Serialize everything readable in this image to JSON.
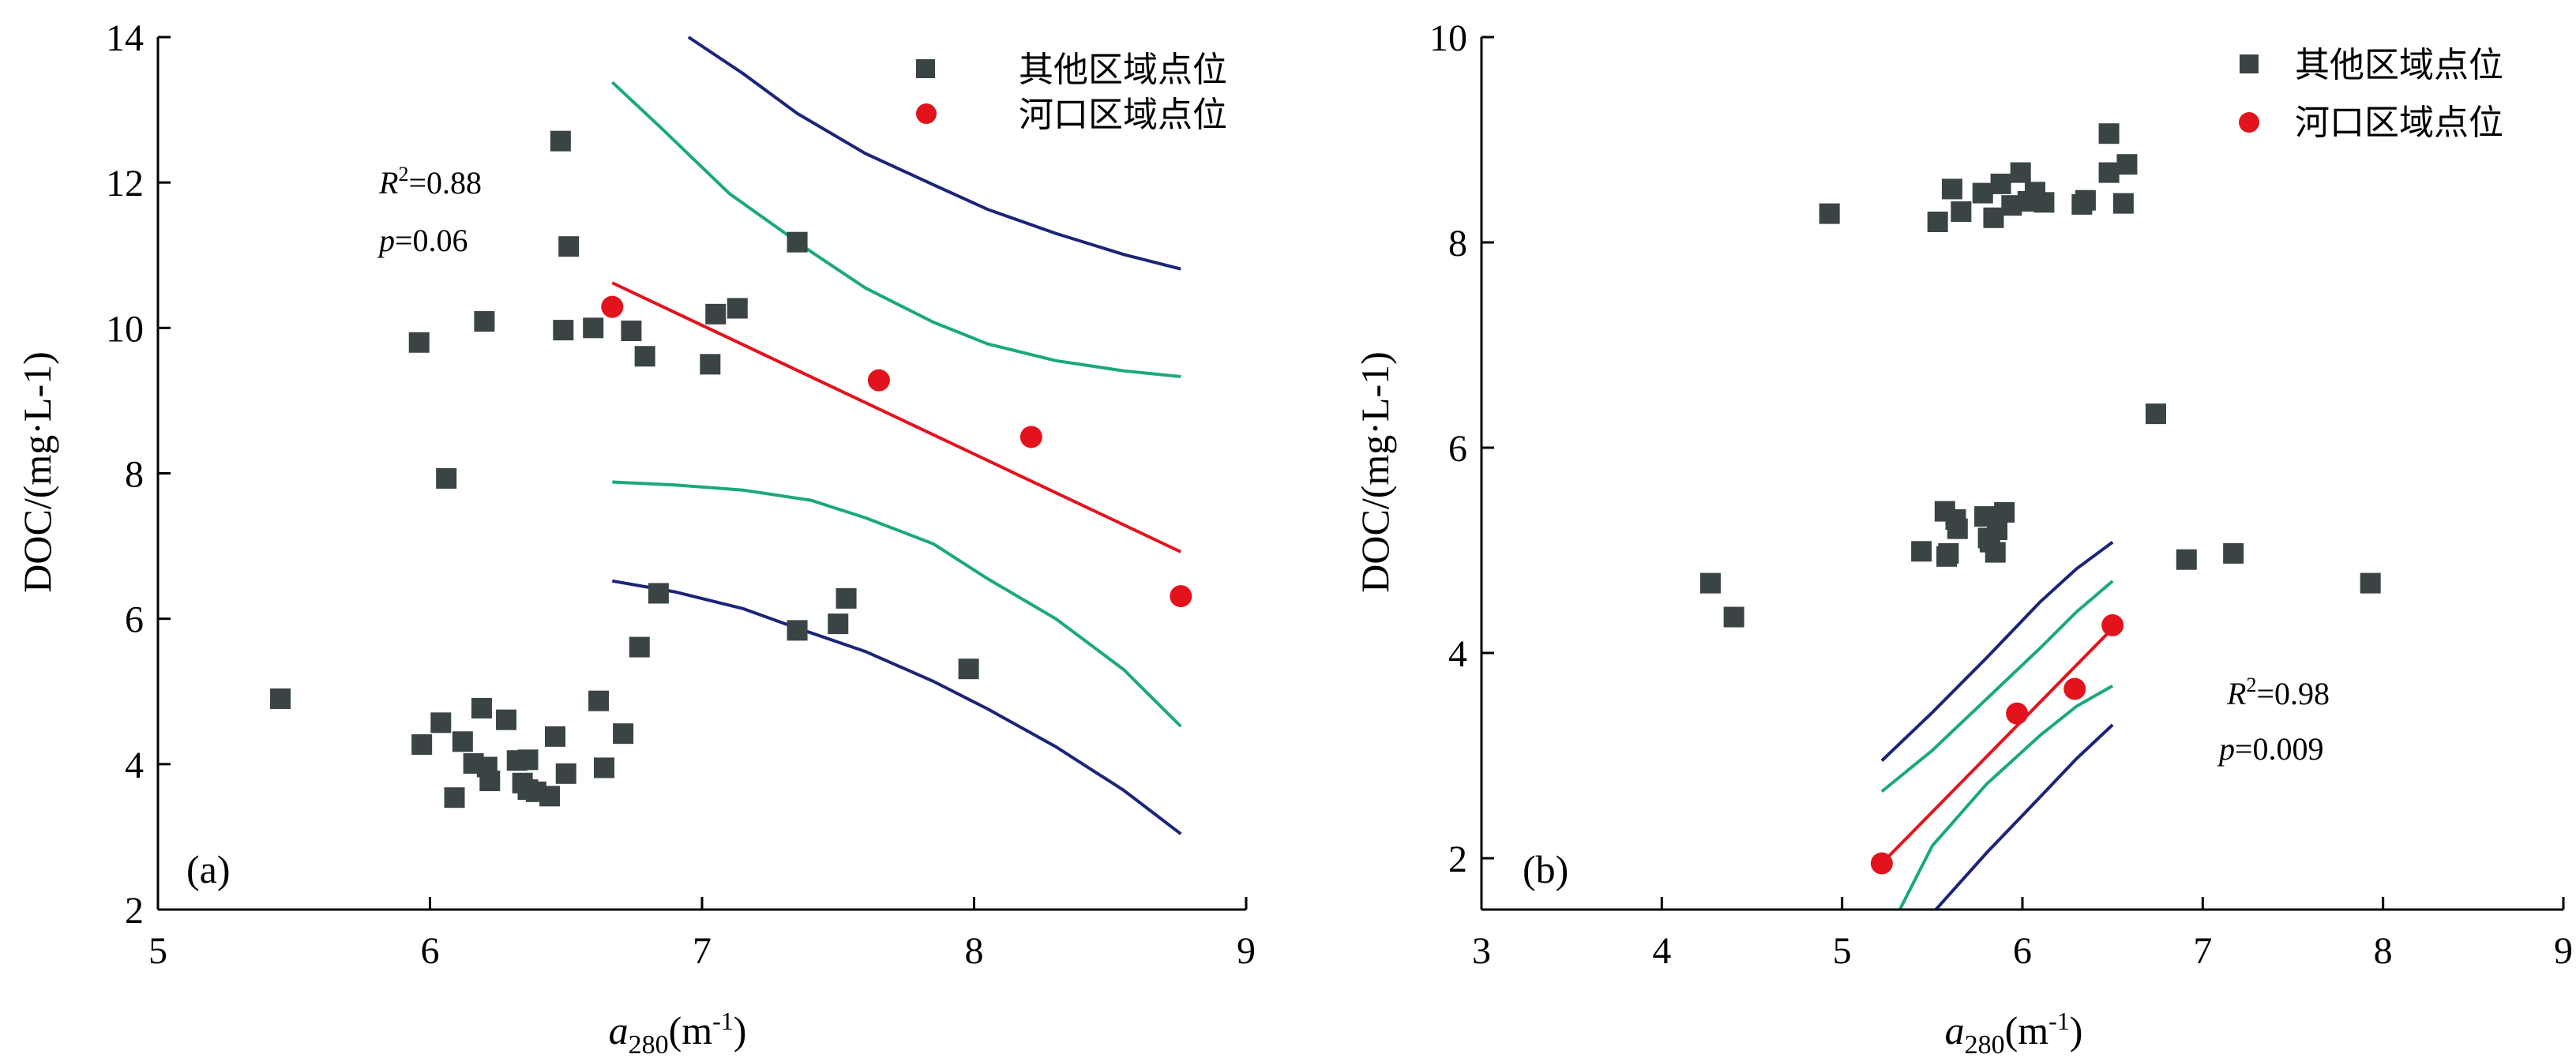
{
  "figure": {
    "legend": {
      "other_label": "其他区域点位",
      "estuary_label": "河口区域点位"
    },
    "colors": {
      "other_marker": "#3a4444",
      "estuary_marker": "#e3131e",
      "fit_line": "#e3131e",
      "confidence_band": "#1aa97a",
      "prediction_band": "#1c2479"
    }
  },
  "chart_data": [
    {
      "type": "scatter",
      "panel_label": "(a)",
      "xlabel": {
        "italic": "a",
        "sub": "280",
        "rest": "(m",
        "sup": "-1",
        "close": ")"
      },
      "ylabel": "DOC/(mg·L-1)",
      "xlim": [
        5,
        9
      ],
      "ylim": [
        2,
        14
      ],
      "xticks": [
        5,
        6,
        7,
        8,
        9
      ],
      "yticks": [
        2,
        4,
        6,
        8,
        10,
        12,
        14
      ],
      "grid": false,
      "legend_position": "top-right",
      "stats": {
        "r2_label": "R",
        "r2_value": "=0.88",
        "p_label": "p",
        "p_value": "=0.06"
      },
      "series": [
        {
          "name": "其他区域点位",
          "marker": "square",
          "points": [
            [
              5.45,
              4.9
            ],
            [
              5.96,
              9.8
            ],
            [
              5.97,
              4.27
            ],
            [
              6.04,
              4.57
            ],
            [
              6.06,
              7.93
            ],
            [
              6.09,
              3.54
            ],
            [
              6.12,
              4.31
            ],
            [
              6.16,
              4.01
            ],
            [
              6.19,
              4.77
            ],
            [
              6.2,
              10.09
            ],
            [
              6.21,
              3.96
            ],
            [
              6.22,
              3.77
            ],
            [
              6.28,
              4.61
            ],
            [
              6.32,
              4.05
            ],
            [
              6.34,
              3.74
            ],
            [
              6.36,
              3.65
            ],
            [
              6.36,
              4.06
            ],
            [
              6.39,
              3.62
            ],
            [
              6.44,
              3.56
            ],
            [
              6.46,
              4.38
            ],
            [
              6.48,
              12.57
            ],
            [
              6.49,
              9.97
            ],
            [
              6.5,
              3.87
            ],
            [
              6.51,
              11.12
            ],
            [
              6.6,
              10.0
            ],
            [
              6.62,
              4.87
            ],
            [
              6.64,
              3.95
            ],
            [
              6.71,
              4.42
            ],
            [
              6.74,
              9.96
            ],
            [
              6.77,
              5.61
            ],
            [
              6.79,
              9.61
            ],
            [
              6.84,
              6.35
            ],
            [
              7.03,
              9.5
            ],
            [
              7.05,
              10.19
            ],
            [
              7.13,
              10.27
            ],
            [
              7.35,
              11.18
            ],
            [
              7.35,
              5.84
            ],
            [
              7.5,
              5.93
            ],
            [
              7.53,
              6.28
            ],
            [
              7.98,
              5.31
            ]
          ]
        },
        {
          "name": "河口区域点位",
          "marker": "circle",
          "points": [
            [
              6.67,
              10.29
            ],
            [
              7.65,
              9.28
            ],
            [
              8.21,
              8.5
            ],
            [
              8.76,
              6.31
            ]
          ]
        }
      ],
      "fit_line": [
        [
          6.67,
          10.62
        ],
        [
          8.76,
          6.92
        ]
      ],
      "confidence_upper": [
        [
          6.67,
          13.38
        ],
        [
          6.85,
          12.75
        ],
        [
          7.1,
          11.85
        ],
        [
          7.4,
          11.05
        ],
        [
          7.6,
          10.55
        ],
        [
          7.85,
          10.08
        ],
        [
          8.05,
          9.78
        ],
        [
          8.3,
          9.55
        ],
        [
          8.55,
          9.41
        ],
        [
          8.76,
          9.33
        ]
      ],
      "confidence_lower": [
        [
          6.67,
          7.88
        ],
        [
          6.9,
          7.84
        ],
        [
          7.15,
          7.77
        ],
        [
          7.4,
          7.63
        ],
        [
          7.6,
          7.39
        ],
        [
          7.85,
          7.03
        ],
        [
          8.05,
          6.55
        ],
        [
          8.3,
          6.0
        ],
        [
          8.55,
          5.3
        ],
        [
          8.76,
          4.52
        ]
      ],
      "prediction_upper": [
        [
          6.95,
          14.0
        ],
        [
          7.15,
          13.5
        ],
        [
          7.35,
          12.95
        ],
        [
          7.6,
          12.4
        ],
        [
          7.85,
          11.97
        ],
        [
          8.05,
          11.63
        ],
        [
          8.3,
          11.3
        ],
        [
          8.55,
          11.01
        ],
        [
          8.76,
          10.81
        ]
      ],
      "prediction_lower": [
        [
          6.67,
          6.52
        ],
        [
          6.9,
          6.37
        ],
        [
          7.15,
          6.14
        ],
        [
          7.35,
          5.87
        ],
        [
          7.6,
          5.55
        ],
        [
          7.85,
          5.14
        ],
        [
          8.05,
          4.76
        ],
        [
          8.3,
          4.24
        ],
        [
          8.55,
          3.64
        ],
        [
          8.76,
          3.04
        ]
      ]
    },
    {
      "type": "scatter",
      "panel_label": "(b)",
      "xlabel": {
        "italic": "a",
        "sub": "280",
        "rest": "(m",
        "sup": "-1",
        "close": ")"
      },
      "ylabel": "DOC/(mg·L-1)",
      "xlim": [
        3,
        9
      ],
      "ylim": [
        1.5,
        10
      ],
      "xticks": [
        3,
        4,
        5,
        6,
        7,
        8,
        9
      ],
      "yticks": [
        2,
        4,
        6,
        8,
        10
      ],
      "grid": false,
      "legend_position": "top-right",
      "stats": {
        "r2_label": "R",
        "r2_value": "=0.98",
        "p_label": "p",
        "p_value": "=0.009"
      },
      "series": [
        {
          "name": "其他区域点位",
          "marker": "square",
          "points": [
            [
              4.27,
              4.68
            ],
            [
              4.4,
              4.35
            ],
            [
              4.93,
              8.28
            ],
            [
              5.44,
              4.99
            ],
            [
              5.53,
              8.2
            ],
            [
              5.57,
              5.38
            ],
            [
              5.58,
              4.94
            ],
            [
              5.59,
              4.97
            ],
            [
              5.61,
              8.52
            ],
            [
              5.63,
              5.3
            ],
            [
              5.64,
              5.21
            ],
            [
              5.66,
              8.3
            ],
            [
              5.78,
              8.48
            ],
            [
              5.79,
              5.33
            ],
            [
              5.81,
              5.12
            ],
            [
              5.82,
              5.08
            ],
            [
              5.84,
              8.24
            ],
            [
              5.85,
              4.98
            ],
            [
              5.86,
              5.2
            ],
            [
              5.88,
              8.57
            ],
            [
              5.9,
              5.37
            ],
            [
              5.94,
              8.36
            ],
            [
              5.99,
              8.68
            ],
            [
              6.03,
              8.4
            ],
            [
              6.07,
              8.49
            ],
            [
              6.12,
              8.39
            ],
            [
              6.33,
              8.37
            ],
            [
              6.35,
              8.41
            ],
            [
              6.48,
              9.06
            ],
            [
              6.48,
              8.68
            ],
            [
              6.56,
              8.38
            ],
            [
              6.58,
              8.76
            ],
            [
              6.74,
              6.33
            ],
            [
              6.91,
              4.91
            ],
            [
              7.17,
              4.97
            ],
            [
              7.93,
              4.68
            ]
          ]
        },
        {
          "name": "河口区域点位",
          "marker": "circle",
          "points": [
            [
              5.22,
              1.95
            ],
            [
              5.97,
              3.41
            ],
            [
              6.29,
              3.65
            ],
            [
              6.5,
              4.27
            ]
          ]
        }
      ],
      "fit_line": [
        [
          5.22,
          1.95
        ],
        [
          6.5,
          4.24
        ]
      ],
      "confidence_upper": [
        [
          5.22,
          2.65
        ],
        [
          5.5,
          3.05
        ],
        [
          5.8,
          3.55
        ],
        [
          6.1,
          4.05
        ],
        [
          6.3,
          4.4
        ],
        [
          6.5,
          4.7
        ]
      ],
      "confidence_lower": [
        [
          5.32,
          1.5
        ],
        [
          5.5,
          2.12
        ],
        [
          5.8,
          2.72
        ],
        [
          6.1,
          3.2
        ],
        [
          6.3,
          3.48
        ],
        [
          6.5,
          3.68
        ]
      ],
      "prediction_upper": [
        [
          5.22,
          2.95
        ],
        [
          5.5,
          3.42
        ],
        [
          5.8,
          3.95
        ],
        [
          6.1,
          4.5
        ],
        [
          6.3,
          4.82
        ],
        [
          6.5,
          5.08
        ]
      ],
      "prediction_lower": [
        [
          5.52,
          1.5
        ],
        [
          5.8,
          2.05
        ],
        [
          6.1,
          2.6
        ],
        [
          6.3,
          2.97
        ],
        [
          6.5,
          3.3
        ]
      ]
    }
  ]
}
